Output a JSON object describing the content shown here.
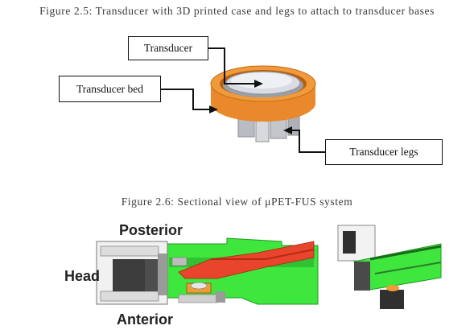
{
  "figure_2_5": {
    "caption": "Figure 2.5: Transducer with 3D printed case and legs to attach to transducer bases",
    "labels": {
      "transducer": "Transducer",
      "transducer_bed": "Transducer bed",
      "transducer_legs": "Transducer legs"
    }
  },
  "figure_2_6": {
    "caption": "Figure 2.6: Sectional view of μPET-FUS system",
    "labels": {
      "posterior": "Posterior",
      "head": "Head",
      "anterior": "Anterior"
    }
  },
  "colors": {
    "case_orange": "#e9892b",
    "model_green": "#3ee63e",
    "support_red": "#e8452c"
  }
}
